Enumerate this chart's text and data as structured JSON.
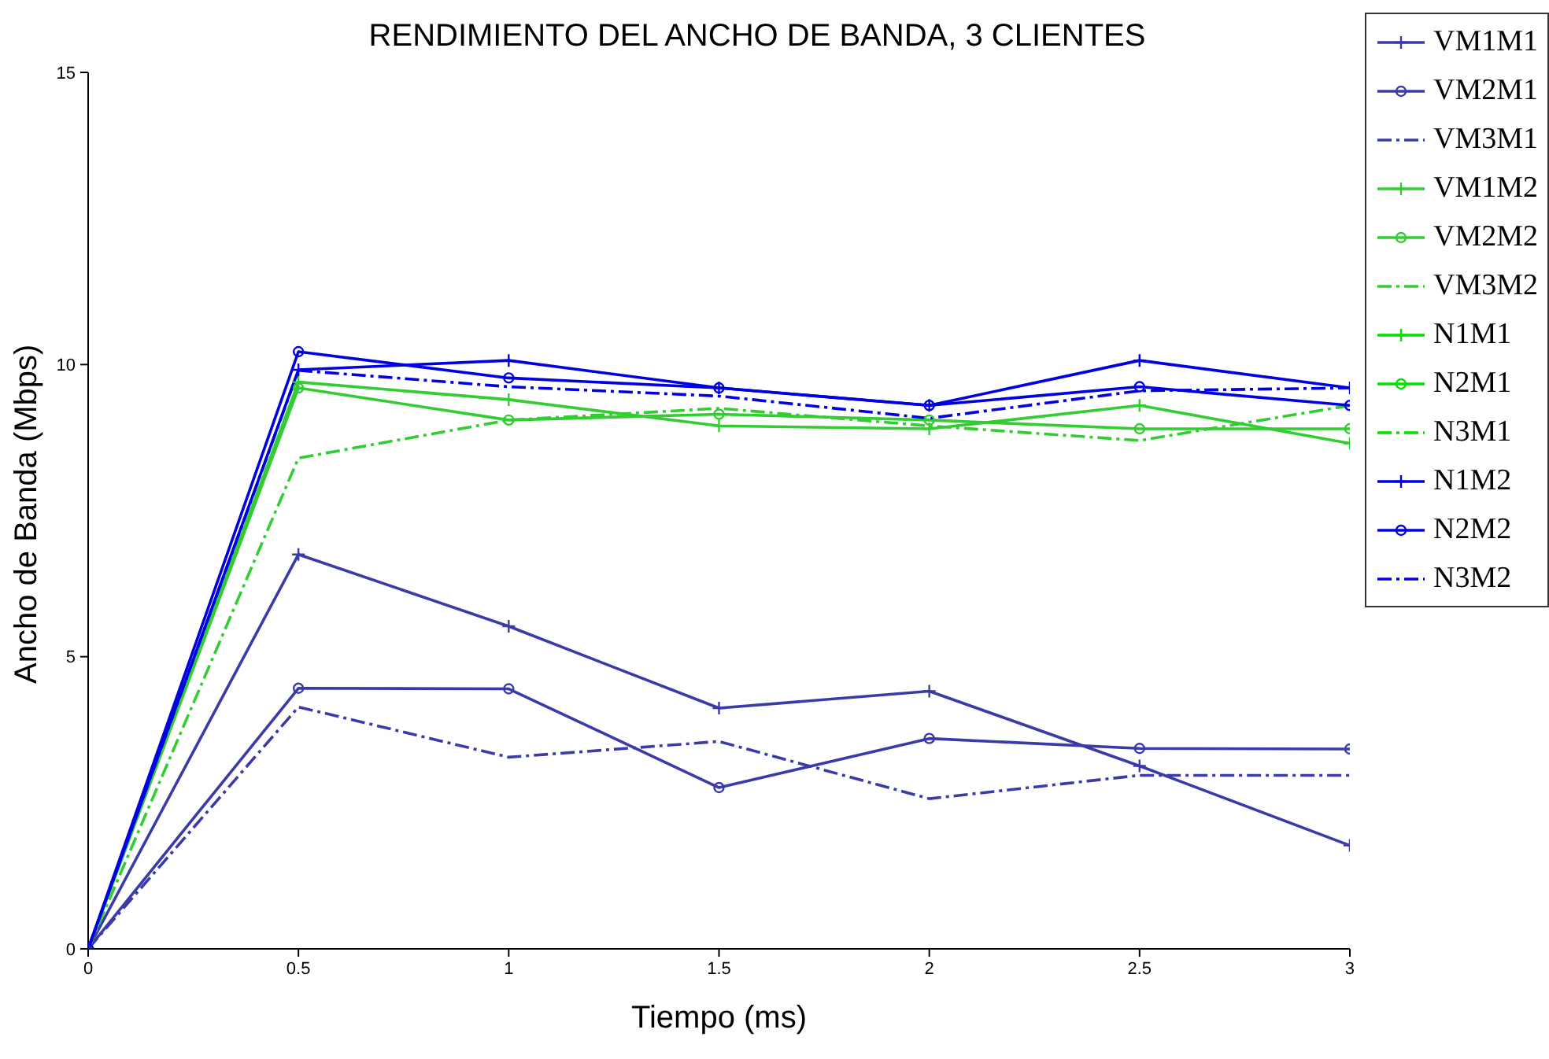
{
  "chart_data": {
    "type": "line",
    "title": "RENDIMIENTO DEL ANCHO DE BANDA, 3 CLIENTES",
    "xlabel": "Tiempo (ms)",
    "ylabel": "Ancho de Banda (Mbps)",
    "x": [
      0,
      0.5,
      1,
      1.5,
      2,
      2.5,
      3
    ],
    "xlim": [
      0,
      3
    ],
    "xticks": [
      0,
      0.5,
      1,
      1.5,
      2,
      2.5,
      3
    ],
    "ylim": [
      0,
      15
    ],
    "yticks": [
      0,
      5,
      10,
      15
    ],
    "grid": false,
    "legend": "top right",
    "series": [
      {
        "name": "VM1M1",
        "color": "#3b3ba8",
        "marker": "cross",
        "line_style": "solid",
        "values": [
          0,
          6.75,
          5.52,
          4.12,
          4.41,
          3.13,
          1.77
        ]
      },
      {
        "name": "VM2M1",
        "color": "#3b3ba8",
        "marker": "circle",
        "line_style": "solid",
        "values": [
          0,
          4.46,
          4.45,
          2.76,
          3.6,
          3.43,
          3.42
        ]
      },
      {
        "name": "VM3M1",
        "color": "#3b3ba8",
        "marker": "none",
        "line_style": "dashed",
        "values": [
          0,
          4.14,
          3.28,
          3.55,
          2.57,
          2.97,
          2.97
        ]
      },
      {
        "name": "VM1M2",
        "color": "#33cc33",
        "marker": "cross",
        "line_style": "solid",
        "values": [
          0,
          9.7,
          9.4,
          8.95,
          8.9,
          9.3,
          8.65
        ]
      },
      {
        "name": "VM2M2",
        "color": "#33cc33",
        "marker": "circle",
        "line_style": "solid",
        "values": [
          0,
          9.6,
          9.05,
          9.15,
          9.05,
          8.9,
          8.9
        ]
      },
      {
        "name": "VM3M2",
        "color": "#33cc33",
        "marker": "none",
        "line_style": "dashed",
        "values": [
          0,
          8.4,
          9.05,
          9.25,
          8.95,
          8.7,
          9.3
        ]
      },
      {
        "name": "N1M1",
        "color": "#00e000",
        "marker": "cross",
        "line_style": "solid",
        "values": [
          null,
          null,
          null,
          null,
          null,
          null,
          null
        ]
      },
      {
        "name": "N2M1",
        "color": "#00e000",
        "marker": "circle",
        "line_style": "solid",
        "values": [
          null,
          null,
          null,
          null,
          null,
          null,
          null
        ]
      },
      {
        "name": "N3M1",
        "color": "#00e000",
        "marker": "none",
        "line_style": "dashed",
        "values": [
          null,
          null,
          null,
          null,
          null,
          null,
          null
        ]
      },
      {
        "name": "N1M2",
        "color": "#0000e0",
        "marker": "cross",
        "line_style": "solid",
        "values": [
          0,
          9.91,
          10.07,
          9.6,
          9.3,
          10.07,
          9.6
        ]
      },
      {
        "name": "N2M2",
        "color": "#0000e0",
        "marker": "circle",
        "line_style": "solid",
        "values": [
          0,
          10.22,
          9.77,
          9.6,
          9.3,
          9.62,
          9.3
        ]
      },
      {
        "name": "N3M2",
        "color": "#0000e0",
        "marker": "none",
        "line_style": "dashed",
        "values": [
          0,
          9.9,
          9.62,
          9.46,
          9.08,
          9.55,
          9.6
        ]
      }
    ]
  }
}
